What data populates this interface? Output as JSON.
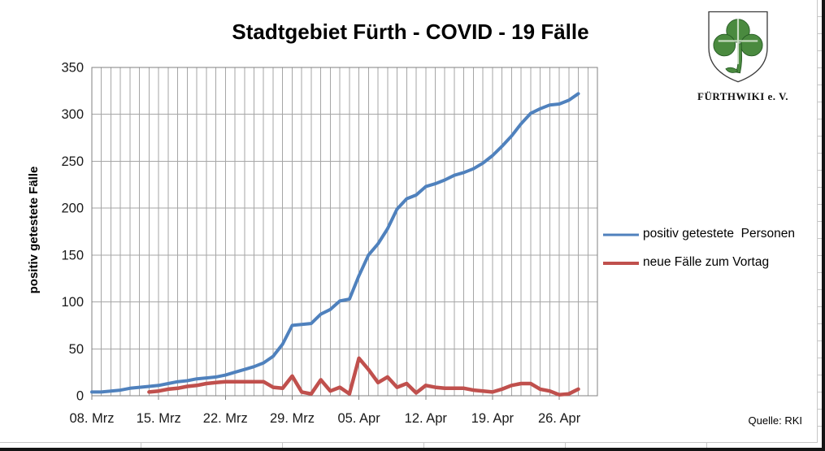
{
  "title": "Stadtgebiet Fürth - COVID - 19 Fälle",
  "logo": {
    "caption": "FÜRTHWIKI e. V."
  },
  "source": "Quelle: RKI",
  "colors": {
    "series_positiv": "#4F81BD",
    "series_neue": "#C0504D",
    "grid": "#A6A6A6",
    "plot_border": "#808080",
    "tick_text": "#1a1a1a",
    "logo_green": "#4a8a3f",
    "logo_green_dark": "#235722"
  },
  "chart_data": {
    "type": "line",
    "title": "Stadtgebiet Fürth - COVID - 19 Fälle",
    "xlabel": "",
    "ylabel": "positiv getestete Fälle",
    "ylim": [
      0,
      350
    ],
    "yticks": [
      0,
      50,
      100,
      150,
      200,
      250,
      300,
      350
    ],
    "x_tick_labels": [
      "08. Mrz",
      "15. Mrz",
      "22. Mrz",
      "29. Mrz",
      "05. Apr",
      "12. Apr",
      "19. Apr",
      "26. Apr"
    ],
    "x_tick_interval_days": 7,
    "axis_day_intervals": 53,
    "axis_span": "08. Mrz to 30. Apr, one vertical gridline per day",
    "grid": "on",
    "legend_position": "right",
    "series": [
      {
        "name": "positiv getestete  Personen",
        "color": "#4F81BD",
        "line_width": 4,
        "start_day_index": 0,
        "start_date": "08. Mrz",
        "end_date": "28. Apr",
        "values": [
          4,
          4,
          5,
          6,
          8,
          9,
          10,
          11,
          13,
          15,
          16,
          18,
          19,
          20,
          22,
          25,
          28,
          31,
          35,
          42,
          55,
          75,
          76,
          77,
          87,
          92,
          101,
          103,
          128,
          150,
          162,
          178,
          199,
          210,
          214,
          223,
          226,
          230,
          235,
          238,
          242,
          248,
          256,
          266,
          277,
          290,
          301,
          306,
          310,
          311,
          315,
          322
        ]
      },
      {
        "name": "neue Fälle zum Vortag",
        "color": "#C0504D",
        "line_width": 4.5,
        "start_day_index": 6,
        "start_date": "14. Mrz",
        "end_date": "28. Apr",
        "values": [
          4,
          5,
          7,
          8,
          10,
          11,
          13,
          14,
          15,
          15,
          15,
          15,
          15,
          9,
          8,
          21,
          4,
          2,
          17,
          5,
          9,
          2,
          40,
          28,
          14,
          20,
          9,
          13,
          3,
          11,
          9,
          8,
          8,
          8,
          6,
          5,
          4,
          7,
          11,
          13,
          13,
          7,
          5,
          1,
          2,
          7
        ]
      }
    ]
  }
}
